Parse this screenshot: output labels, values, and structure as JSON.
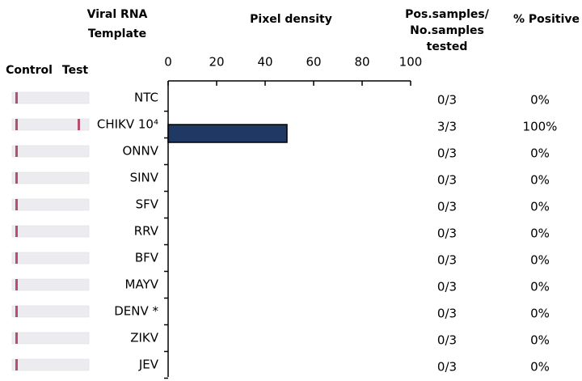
{
  "chart_data": {
    "type": "bar",
    "orientation": "horizontal",
    "category_header": [
      "Viral RNA",
      "Template"
    ],
    "value_header": "Pixel density",
    "strip_labels": [
      "Control",
      "Test"
    ],
    "categories": [
      "NTC",
      "CHIKV 10⁴",
      "ONNV",
      "SINV",
      "SFV",
      "RRV",
      "BFV",
      "MAYV",
      "DENV *",
      "ZIKV",
      "JEV"
    ],
    "values": [
      0,
      49,
      0,
      0,
      0,
      0,
      0,
      0,
      0,
      0,
      0
    ],
    "color": "#1f3864",
    "xlim": [
      0,
      100
    ],
    "xticks": [
      0,
      20,
      40,
      60,
      80,
      100
    ],
    "columns": [
      {
        "header": [
          "Pos.samples/",
          "No.samples",
          "tested"
        ],
        "values": [
          "0/3",
          "3/3",
          "0/3",
          "0/3",
          "0/3",
          "0/3",
          "0/3",
          "0/3",
          "0/3",
          "0/3",
          "0/3"
        ]
      },
      {
        "header": [
          "% Positive"
        ],
        "values": [
          "0%",
          "100%",
          "0%",
          "0%",
          "0%",
          "0%",
          "0%",
          "0%",
          "0%",
          "0%",
          "0%"
        ]
      }
    ]
  }
}
